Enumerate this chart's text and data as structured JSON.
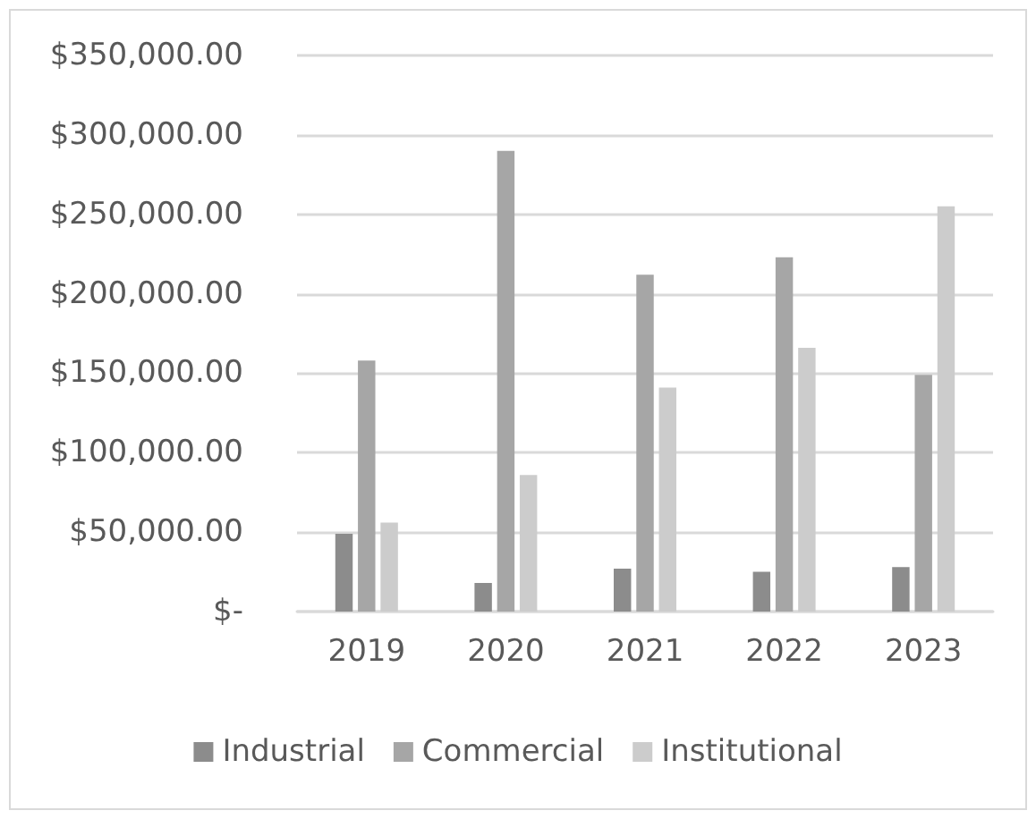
{
  "chart_data": {
    "type": "bar",
    "categories": [
      "2019",
      "2020",
      "2021",
      "2022",
      "2023"
    ],
    "series": [
      {
        "name": "Industrial",
        "color": "#8c8c8c",
        "values": [
          49000,
          18000,
          27000,
          25000,
          28000
        ]
      },
      {
        "name": "Commercial",
        "color": "#a6a6a6",
        "values": [
          158000,
          290000,
          212000,
          223000,
          149000
        ]
      },
      {
        "name": "Institutional",
        "color": "#cccccc",
        "values": [
          56000,
          86000,
          141000,
          166000,
          255000
        ]
      }
    ],
    "ylim": [
      0,
      350000
    ],
    "yticks": [
      {
        "value": 0,
        "label": "$-"
      },
      {
        "value": 50000,
        "label": "$50,000.00"
      },
      {
        "value": 100000,
        "label": "$100,000.00"
      },
      {
        "value": 150000,
        "label": "$150,000.00"
      },
      {
        "value": 200000,
        "label": "$200,000.00"
      },
      {
        "value": 250000,
        "label": "$250,000.00"
      },
      {
        "value": 300000,
        "label": "$300,000.00"
      },
      {
        "value": 350000,
        "label": "$350,000.00"
      }
    ],
    "grid": "y",
    "legend": "bottom"
  }
}
